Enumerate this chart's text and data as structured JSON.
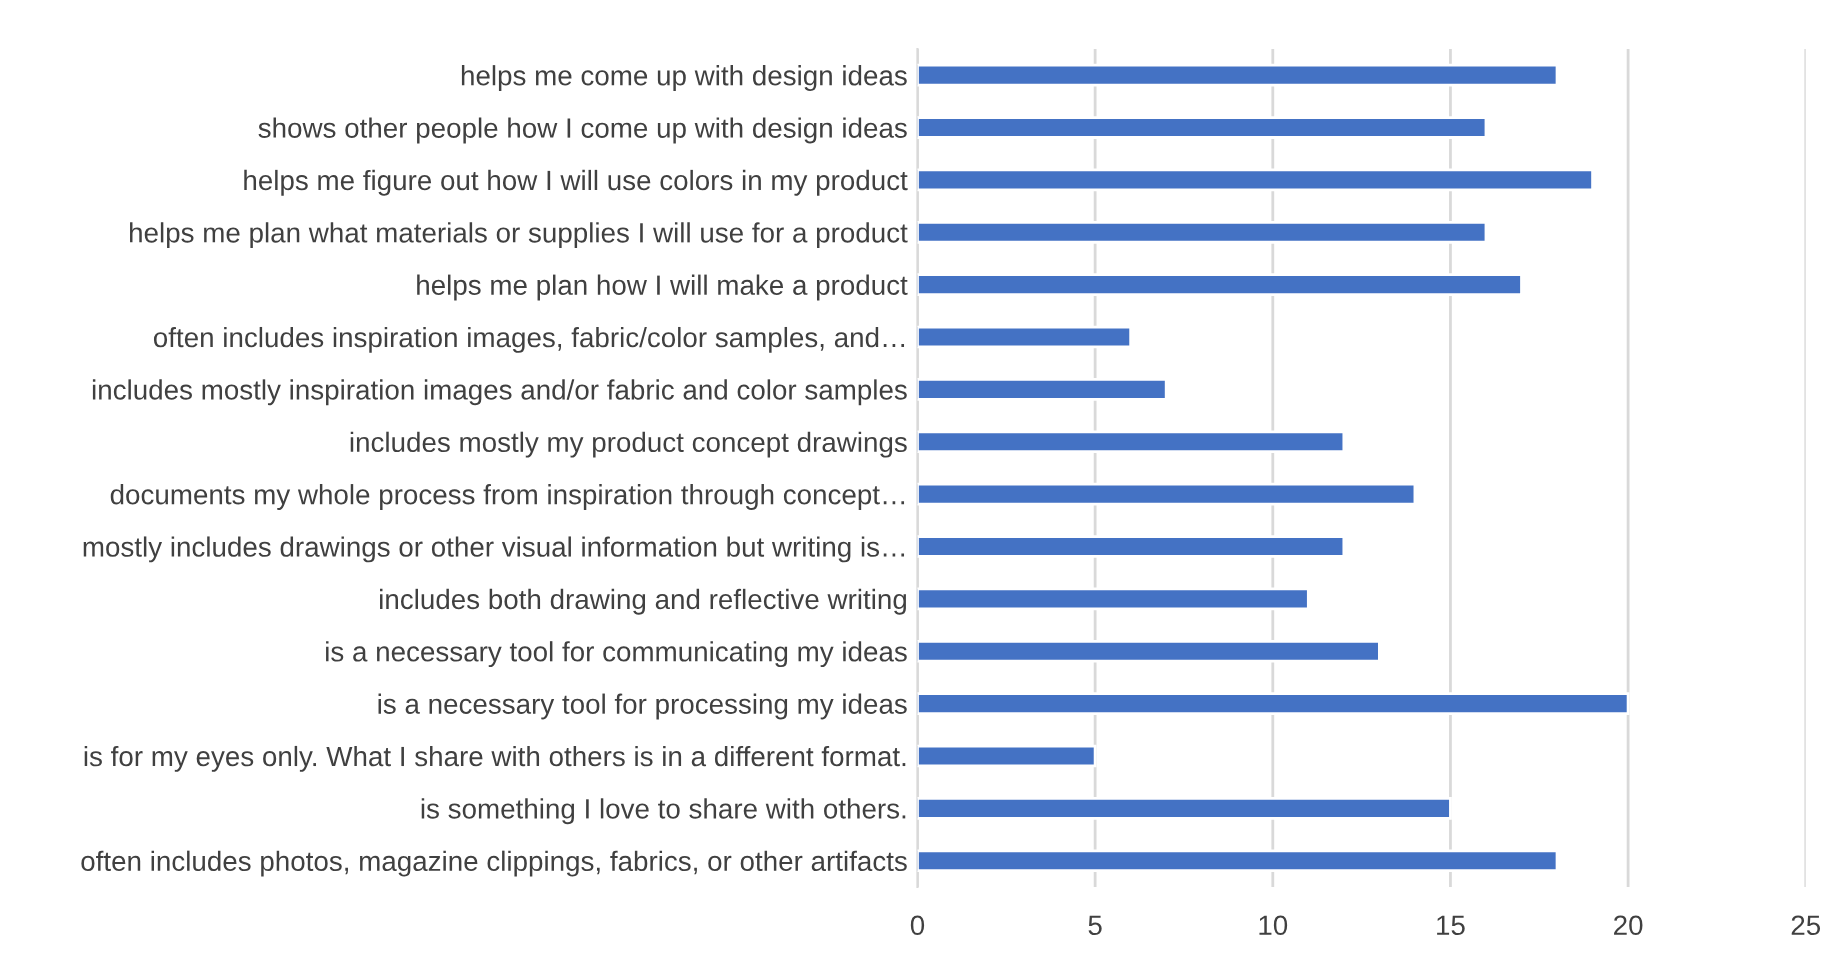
{
  "chart_data": {
    "type": "bar",
    "orientation": "horizontal",
    "categories": [
      "helps me come up with design ideas",
      "shows other people how I come up with design ideas",
      "helps me figure out how I will use colors in my product",
      "helps me plan what materials or supplies I will use for a product",
      "helps me plan how I will make a product",
      "often includes inspiration images, fabric/color samples, and…",
      "includes mostly inspiration images and/or fabric and color samples",
      "includes mostly my product concept drawings",
      "documents my whole process from inspiration through concept…",
      "mostly includes drawings or other visual information but writing is…",
      "includes both drawing and reflective writing",
      "is a necessary tool for communicating my ideas",
      "is a necessary tool for processing my ideas",
      "is for my eyes only. What I share with others is in a different format.",
      "is something I love to share with others.",
      "often includes photos, magazine clippings, fabrics, or other artifacts"
    ],
    "values": [
      18,
      16,
      19,
      16,
      17,
      6,
      7,
      12,
      14,
      12,
      11,
      13,
      20,
      5,
      15,
      18
    ],
    "color": "#4472c4",
    "xlim": [
      0,
      25
    ],
    "xticks": [
      0,
      5,
      10,
      15,
      20,
      25
    ],
    "grid": "x"
  }
}
